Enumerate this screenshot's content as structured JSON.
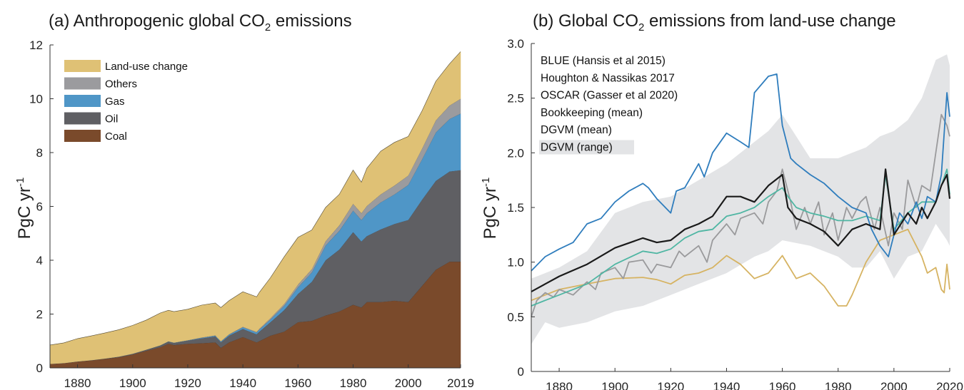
{
  "chart_data": [
    {
      "type": "area",
      "panel": "a",
      "title_main": "(a) Anthropogenic global CO",
      "title_sub": "2",
      "title_end": " emissions",
      "ylabel_main": "PgC yr",
      "ylabel_sup": "-1",
      "xlim": [
        1870,
        2019
      ],
      "ylim": [
        0,
        12
      ],
      "xticks": [
        1880,
        1900,
        1920,
        1940,
        1960,
        1980,
        2000,
        2019
      ],
      "yticks": [
        0,
        2,
        4,
        6,
        8,
        10,
        12
      ],
      "stack_order": [
        "Coal",
        "Oil",
        "Gas",
        "Others",
        "Land-use change"
      ],
      "legend_order": [
        "Land-use change",
        "Others",
        "Gas",
        "Oil",
        "Coal"
      ],
      "colors": {
        "Coal": "#7a4a2b",
        "Oil": "#5f5f63",
        "Gas": "#4f96c7",
        "Others": "#9b9b9e",
        "Land-use change": "#dfc175"
      },
      "x": [
        1870,
        1875,
        1880,
        1885,
        1890,
        1895,
        1900,
        1905,
        1910,
        1913,
        1915,
        1920,
        1925,
        1930,
        1932,
        1935,
        1940,
        1945,
        1946,
        1950,
        1955,
        1960,
        1965,
        1970,
        1975,
        1980,
        1983,
        1985,
        1990,
        1995,
        2000,
        2005,
        2010,
        2015,
        2019
      ],
      "series": [
        {
          "name": "Coal",
          "values": [
            0.15,
            0.18,
            0.24,
            0.28,
            0.34,
            0.4,
            0.5,
            0.64,
            0.77,
            0.9,
            0.85,
            0.9,
            0.92,
            0.95,
            0.75,
            0.95,
            1.15,
            0.95,
            1.0,
            1.2,
            1.35,
            1.7,
            1.75,
            1.95,
            2.1,
            2.35,
            2.25,
            2.45,
            2.45,
            2.5,
            2.45,
            3.05,
            3.65,
            3.95,
            3.95
          ]
        },
        {
          "name": "Oil",
          "values": [
            0.0,
            0.0,
            0.0,
            0.01,
            0.01,
            0.02,
            0.03,
            0.04,
            0.06,
            0.08,
            0.08,
            0.12,
            0.18,
            0.22,
            0.2,
            0.25,
            0.3,
            0.3,
            0.35,
            0.5,
            0.8,
            1.05,
            1.45,
            2.05,
            2.3,
            2.7,
            2.45,
            2.45,
            2.7,
            2.85,
            3.05,
            3.2,
            3.3,
            3.35,
            3.4
          ]
        },
        {
          "name": "Gas",
          "values": [
            0.0,
            0.0,
            0.0,
            0.0,
            0.0,
            0.0,
            0.0,
            0.0,
            0.01,
            0.01,
            0.01,
            0.01,
            0.02,
            0.03,
            0.03,
            0.04,
            0.06,
            0.07,
            0.08,
            0.1,
            0.16,
            0.25,
            0.35,
            0.55,
            0.7,
            0.8,
            0.8,
            0.85,
            1.0,
            1.1,
            1.3,
            1.5,
            1.8,
            1.95,
            2.1
          ]
        },
        {
          "name": "Others",
          "values": [
            0.0,
            0.0,
            0.0,
            0.0,
            0.0,
            0.0,
            0.0,
            0.0,
            0.0,
            0.0,
            0.0,
            0.0,
            0.01,
            0.01,
            0.01,
            0.01,
            0.02,
            0.02,
            0.03,
            0.05,
            0.07,
            0.1,
            0.12,
            0.16,
            0.2,
            0.25,
            0.25,
            0.27,
            0.3,
            0.33,
            0.35,
            0.4,
            0.45,
            0.5,
            0.55
          ]
        },
        {
          "name": "Land-use change",
          "values": [
            0.7,
            0.75,
            0.85,
            0.9,
            0.95,
            1.0,
            1.05,
            1.1,
            1.2,
            1.15,
            1.15,
            1.15,
            1.2,
            1.2,
            1.25,
            1.25,
            1.3,
            1.3,
            1.35,
            1.5,
            1.75,
            1.75,
            1.45,
            1.25,
            1.15,
            1.25,
            1.15,
            1.4,
            1.6,
            1.6,
            1.45,
            1.4,
            1.45,
            1.55,
            1.75
          ]
        }
      ]
    },
    {
      "type": "line",
      "panel": "b",
      "title_main": "(b) Global CO",
      "title_sub": "2",
      "title_end": " emissions from land-use change",
      "ylabel_main": "PgC yr",
      "ylabel_sup": "-1",
      "xlim": [
        1870,
        2020
      ],
      "ylim": [
        0,
        3.0
      ],
      "xticks": [
        1880,
        1900,
        1920,
        1940,
        1960,
        1980,
        2000,
        2020
      ],
      "ytick_labels": [
        "0",
        "0.5",
        "1.0",
        "1.5",
        "2.0",
        "2.5",
        "3.0"
      ],
      "range_band": {
        "name": "DGVM (range)",
        "color": "#e3e4e6",
        "x": [
          1870,
          1875,
          1880,
          1890,
          1900,
          1910,
          1920,
          1930,
          1940,
          1950,
          1955,
          1960,
          1970,
          1980,
          1985,
          1990,
          1995,
          2000,
          2005,
          2010,
          2015,
          2019,
          2020
        ],
        "low": [
          0.25,
          0.45,
          0.4,
          0.45,
          0.55,
          0.6,
          0.7,
          0.8,
          0.9,
          1.05,
          1.1,
          1.2,
          1.15,
          1.05,
          0.95,
          0.95,
          1.1,
          0.85,
          1.05,
          1.1,
          1.35,
          1.2,
          1.15
        ],
        "high": [
          0.85,
          0.9,
          0.95,
          1.1,
          1.45,
          1.55,
          1.6,
          1.75,
          1.9,
          2.1,
          2.2,
          2.35,
          1.95,
          1.95,
          2.0,
          2.05,
          2.15,
          2.2,
          2.3,
          2.5,
          2.85,
          2.9,
          2.8
        ]
      },
      "series": [
        {
          "name": "BLUE (Hansis et al 2015)",
          "color": "#2f7dbd",
          "x": [
            1870,
            1875,
            1880,
            1885,
            1890,
            1895,
            1900,
            1905,
            1910,
            1912,
            1915,
            1920,
            1922,
            1925,
            1930,
            1932,
            1935,
            1940,
            1945,
            1948,
            1950,
            1955,
            1958,
            1960,
            1963,
            1965,
            1970,
            1975,
            1980,
            1985,
            1990,
            1992,
            1995,
            1998,
            2000,
            2002,
            2005,
            2008,
            2010,
            2012,
            2015,
            2017,
            2019,
            2020
          ],
          "values": [
            0.92,
            1.05,
            1.12,
            1.18,
            1.35,
            1.4,
            1.55,
            1.65,
            1.72,
            1.68,
            1.58,
            1.45,
            1.65,
            1.68,
            1.9,
            1.78,
            2.0,
            2.18,
            2.1,
            2.05,
            2.55,
            2.7,
            2.72,
            2.25,
            1.95,
            1.9,
            1.8,
            1.72,
            1.6,
            1.5,
            1.45,
            1.3,
            1.15,
            1.05,
            1.25,
            1.45,
            1.35,
            1.55,
            1.4,
            1.6,
            1.55,
            1.8,
            2.55,
            2.33
          ]
        },
        {
          "name": "Houghton & Nassikas 2017",
          "color": "#d6b362",
          "x": [
            1870,
            1875,
            1880,
            1890,
            1900,
            1910,
            1915,
            1920,
            1925,
            1930,
            1935,
            1940,
            1945,
            1950,
            1955,
            1960,
            1965,
            1970,
            1975,
            1980,
            1983,
            1985,
            1990,
            1995,
            2000,
            2005,
            2010,
            2012,
            2015,
            2017,
            2018,
            2019,
            2020
          ],
          "values": [
            0.65,
            0.7,
            0.75,
            0.8,
            0.85,
            0.86,
            0.84,
            0.8,
            0.88,
            0.9,
            0.95,
            1.06,
            0.98,
            0.85,
            0.9,
            1.06,
            0.85,
            0.9,
            0.78,
            0.6,
            0.6,
            0.7,
            1.0,
            1.2,
            1.25,
            1.3,
            1.05,
            0.9,
            0.95,
            0.75,
            0.72,
            0.98,
            0.75
          ]
        },
        {
          "name": "OSCAR (Gasser et al 2020)",
          "color": "#4fb6a3",
          "x": [
            1870,
            1875,
            1880,
            1890,
            1900,
            1910,
            1915,
            1920,
            1925,
            1930,
            1935,
            1940,
            1945,
            1950,
            1955,
            1960,
            1962,
            1965,
            1970,
            1975,
            1980,
            1985,
            1990,
            1995,
            1997,
            2000,
            2005,
            2010,
            2015,
            2019,
            2020
          ],
          "values": [
            0.6,
            0.65,
            0.7,
            0.8,
            0.98,
            1.1,
            1.08,
            1.12,
            1.22,
            1.28,
            1.3,
            1.42,
            1.45,
            1.5,
            1.6,
            1.68,
            1.6,
            1.5,
            1.45,
            1.42,
            1.38,
            1.38,
            1.42,
            1.38,
            1.8,
            1.3,
            1.45,
            1.55,
            1.55,
            1.85,
            1.62
          ]
        },
        {
          "name": "Bookkeeping (mean)",
          "color": "#1a1a1a",
          "x": [
            1870,
            1875,
            1880,
            1890,
            1900,
            1910,
            1915,
            1920,
            1925,
            1930,
            1935,
            1940,
            1945,
            1950,
            1955,
            1960,
            1962,
            1965,
            1970,
            1975,
            1980,
            1985,
            1990,
            1995,
            1997,
            2000,
            2005,
            2008,
            2010,
            2012,
            2015,
            2017,
            2019,
            2020
          ],
          "values": [
            0.73,
            0.8,
            0.87,
            0.98,
            1.13,
            1.22,
            1.18,
            1.2,
            1.3,
            1.35,
            1.42,
            1.6,
            1.6,
            1.55,
            1.7,
            1.8,
            1.5,
            1.4,
            1.35,
            1.28,
            1.15,
            1.3,
            1.35,
            1.3,
            1.85,
            1.25,
            1.45,
            1.35,
            1.5,
            1.4,
            1.55,
            1.7,
            1.8,
            1.58
          ]
        },
        {
          "name": "DGVM (mean)",
          "color": "#9a9a9c",
          "x": [
            1870,
            1872,
            1875,
            1878,
            1880,
            1885,
            1890,
            1893,
            1895,
            1900,
            1903,
            1905,
            1910,
            1913,
            1915,
            1920,
            1923,
            1925,
            1930,
            1933,
            1935,
            1940,
            1943,
            1945,
            1950,
            1953,
            1955,
            1958,
            1960,
            1963,
            1965,
            1968,
            1970,
            1973,
            1975,
            1978,
            1980,
            1983,
            1985,
            1988,
            1990,
            1993,
            1995,
            1998,
            2000,
            2003,
            2005,
            2008,
            2010,
            2013,
            2015,
            2017,
            2019,
            2020
          ],
          "values": [
            0.5,
            0.65,
            0.72,
            0.68,
            0.75,
            0.7,
            0.82,
            0.75,
            0.9,
            0.95,
            0.85,
            1.0,
            1.02,
            0.9,
            0.98,
            0.95,
            1.1,
            1.05,
            1.15,
            1.0,
            1.2,
            1.35,
            1.25,
            1.4,
            1.45,
            1.35,
            1.55,
            1.65,
            1.85,
            1.55,
            1.3,
            1.5,
            1.35,
            1.55,
            1.25,
            1.45,
            1.2,
            1.5,
            1.4,
            1.55,
            1.6,
            1.3,
            1.5,
            1.15,
            1.45,
            1.3,
            1.75,
            1.5,
            1.7,
            1.65,
            2.0,
            2.35,
            2.25,
            2.15
          ]
        }
      ],
      "legend": [
        "BLUE (Hansis et al 2015)",
        "Houghton & Nassikas 2017",
        "OSCAR (Gasser et al 2020)",
        "Bookkeeping (mean)",
        "DGVM (mean)",
        "DGVM (range)"
      ]
    }
  ]
}
